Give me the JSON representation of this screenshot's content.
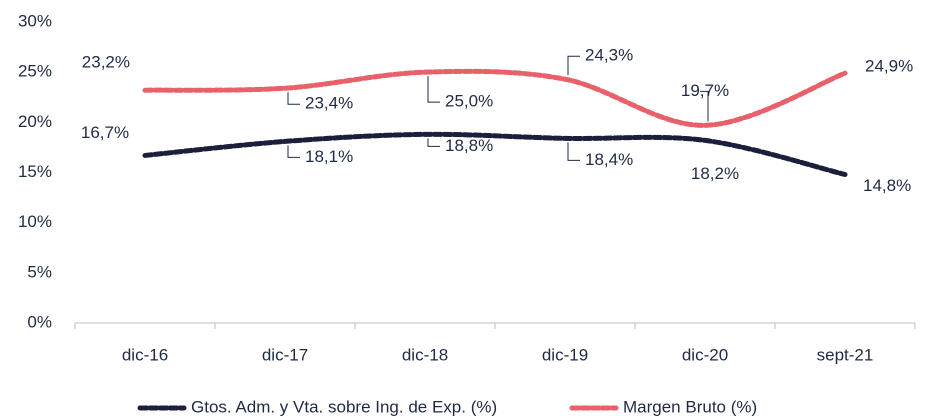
{
  "chart_data": {
    "type": "line",
    "categories": [
      "dic-16",
      "dic-17",
      "dic-18",
      "dic-19",
      "dic-20",
      "sept-21"
    ],
    "series": [
      {
        "name": "Gtos. Adm. y Vta. sobre Ing. de Exp. (%)",
        "color": "#1b1f3b",
        "values": [
          16.7,
          18.1,
          18.8,
          18.4,
          18.2,
          14.8
        ],
        "value_labels": [
          "16,7%",
          "18,1%",
          "18,8%",
          "18,4%",
          "18,2%",
          "14,8%"
        ]
      },
      {
        "name": "Margen Bruto (%)",
        "color": "#e8606a",
        "values": [
          23.2,
          23.4,
          25.0,
          24.3,
          19.7,
          24.9
        ],
        "value_labels": [
          "23,2%",
          "23,4%",
          "25,0%",
          "24,3%",
          "19,7%",
          "24,9%"
        ]
      }
    ],
    "ylim": [
      0,
      30
    ],
    "yticks": [
      {
        "value": 0,
        "label": "0%"
      },
      {
        "value": 5,
        "label": "5%"
      },
      {
        "value": 10,
        "label": "10%"
      },
      {
        "value": 15,
        "label": "15%"
      },
      {
        "value": 20,
        "label": "20%"
      },
      {
        "value": 25,
        "label": "25%"
      },
      {
        "value": 30,
        "label": "30%"
      }
    ],
    "legend": "bottom"
  }
}
